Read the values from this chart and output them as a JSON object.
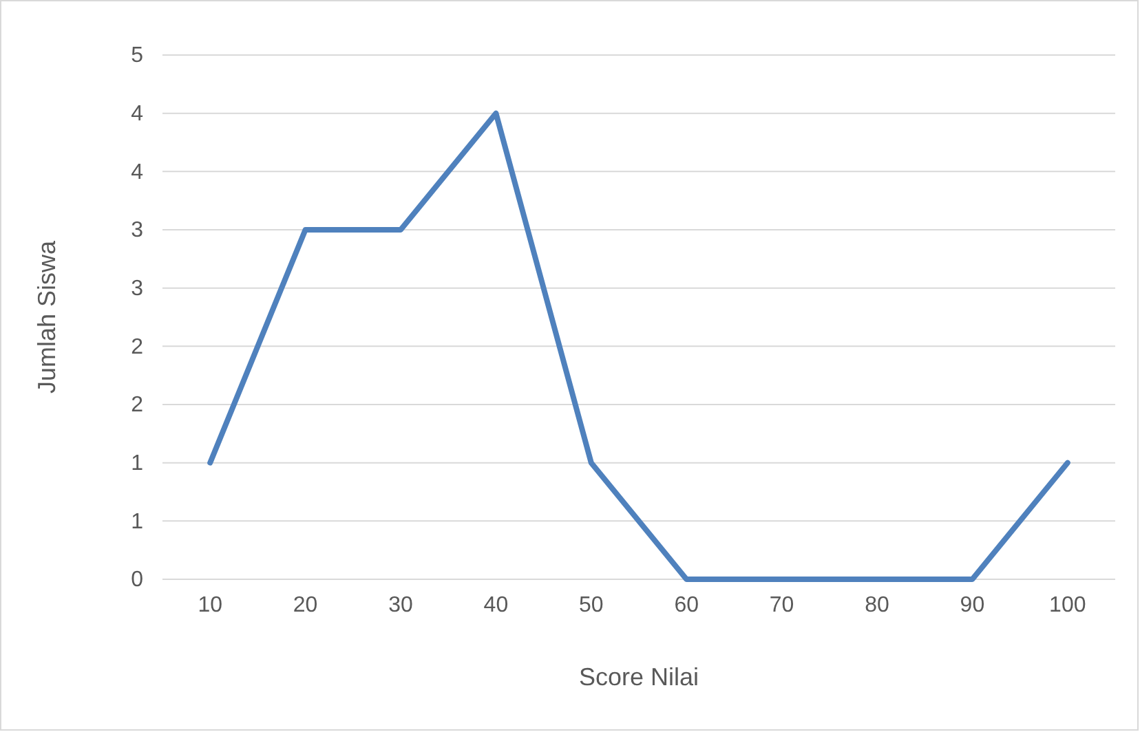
{
  "chart_data": {
    "type": "line",
    "xlabel": "Score Nilai",
    "ylabel": "Jumlah Siswa",
    "categories": [
      "10",
      "20",
      "30",
      "40",
      "50",
      "60",
      "70",
      "80",
      "90",
      "100"
    ],
    "series": [
      {
        "color": "#4f81bd",
        "values": [
          1,
          3,
          3,
          4,
          1,
          0,
          0,
          0,
          0,
          1
        ]
      }
    ],
    "ylim": [
      0,
      4.5
    ],
    "yticks": [
      0,
      {
        "value": 0.5,
        "label": "1"
      },
      1,
      {
        "value": 1.5,
        "label": "2"
      },
      2,
      {
        "value": 2.5,
        "label": "3"
      },
      3,
      {
        "value": 3.5,
        "label": "4"
      },
      4,
      {
        "value": 4.5,
        "label": "5"
      }
    ],
    "grid": "y",
    "marker": "none",
    "line_style": "solid"
  }
}
